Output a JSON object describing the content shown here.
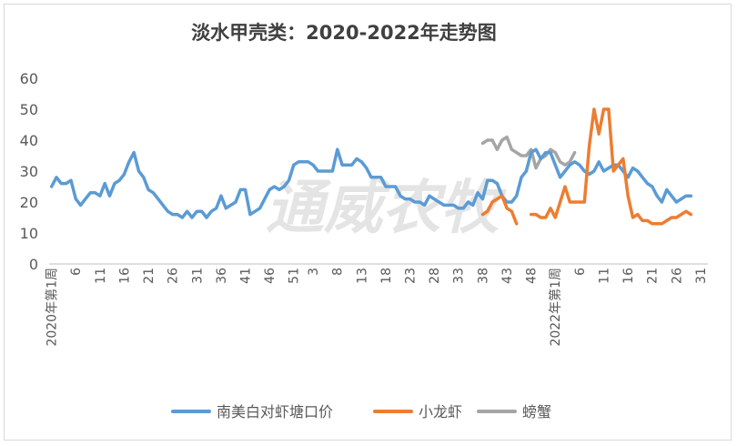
{
  "chart_data": {
    "type": "line",
    "title": "淡水甲壳类：2020-2022年走势图",
    "watermark": "通威农牧",
    "ylim": [
      0,
      60
    ],
    "yticks": [
      0,
      10,
      20,
      30,
      40,
      50,
      60
    ],
    "grid": false,
    "legend_position": "bottom",
    "x_range": [
      1,
      136
    ],
    "xticks": [
      {
        "i": 1,
        "label": "2020年第1周"
      },
      {
        "i": 6,
        "label": "6"
      },
      {
        "i": 11,
        "label": "11"
      },
      {
        "i": 16,
        "label": "16"
      },
      {
        "i": 21,
        "label": "21"
      },
      {
        "i": 26,
        "label": "26"
      },
      {
        "i": 31,
        "label": "31"
      },
      {
        "i": 36,
        "label": "36"
      },
      {
        "i": 41,
        "label": "41"
      },
      {
        "i": 46,
        "label": "46"
      },
      {
        "i": 51,
        "label": "51"
      },
      {
        "i": 55,
        "label": "3"
      },
      {
        "i": 60,
        "label": "8"
      },
      {
        "i": 65,
        "label": "13"
      },
      {
        "i": 70,
        "label": "18"
      },
      {
        "i": 75,
        "label": "23"
      },
      {
        "i": 80,
        "label": "28"
      },
      {
        "i": 85,
        "label": "33"
      },
      {
        "i": 90,
        "label": "38"
      },
      {
        "i": 95,
        "label": "43"
      },
      {
        "i": 100,
        "label": "48"
      },
      {
        "i": 105,
        "label": "2022年第1周"
      },
      {
        "i": 110,
        "label": "6"
      },
      {
        "i": 115,
        "label": "11"
      },
      {
        "i": 120,
        "label": "16"
      },
      {
        "i": 125,
        "label": "21"
      },
      {
        "i": 130,
        "label": "26"
      },
      {
        "i": 135,
        "label": "31"
      }
    ],
    "series": [
      {
        "name": "南美白对虾塘口价",
        "color": "#5b9bd5",
        "start": 1,
        "values": [
          25,
          28,
          26,
          26,
          27,
          21,
          19,
          21,
          23,
          23,
          22,
          26,
          22,
          26,
          27,
          29,
          33,
          36,
          30,
          28,
          24,
          23,
          21,
          19,
          17,
          16,
          16,
          15,
          17,
          15,
          17,
          17,
          15,
          17,
          18,
          22,
          18,
          19,
          20,
          24,
          24,
          16,
          17,
          18,
          21,
          24,
          25,
          24,
          25,
          27,
          32,
          33,
          33,
          33,
          32,
          30,
          30,
          30,
          30,
          37,
          32,
          32,
          32,
          34,
          33,
          31,
          28,
          28,
          28,
          25,
          25,
          25,
          22,
          21,
          21,
          20,
          20,
          19,
          22,
          21,
          20,
          19,
          19,
          19,
          18,
          18,
          20,
          19,
          23,
          21,
          27,
          27,
          26,
          22,
          20,
          20,
          22,
          28,
          30,
          36,
          37,
          34,
          36,
          36,
          32,
          28,
          30,
          32,
          33,
          32,
          30,
          29,
          30,
          33,
          30,
          31,
          32,
          32,
          30,
          28,
          31,
          30,
          28,
          26,
          25,
          22,
          20,
          24,
          22,
          20,
          21,
          22,
          22
        ]
      },
      {
        "name": "小龙虾",
        "color": "#ed7d31",
        "segments": [
          {
            "start": 90,
            "values": [
              16,
              17,
              20,
              21,
              22,
              18,
              17,
              13
            ]
          },
          {
            "start": 100,
            "values": [
              16,
              16,
              15,
              15,
              18,
              15,
              20,
              25,
              20,
              20,
              20,
              20,
              38,
              50,
              42,
              50,
              50,
              30,
              32,
              34,
              22,
              15,
              16,
              14,
              14,
              13,
              13,
              13,
              14,
              15,
              15,
              16,
              17,
              16
            ]
          }
        ]
      },
      {
        "name": "螃蟹",
        "color": "#a5a5a5",
        "segments": [
          {
            "start": 90,
            "values": [
              39,
              40,
              40,
              37,
              40,
              41,
              37,
              36,
              35,
              35,
              37,
              31,
              34,
              35,
              37,
              36,
              33,
              32,
              33,
              36
            ]
          }
        ]
      }
    ]
  }
}
